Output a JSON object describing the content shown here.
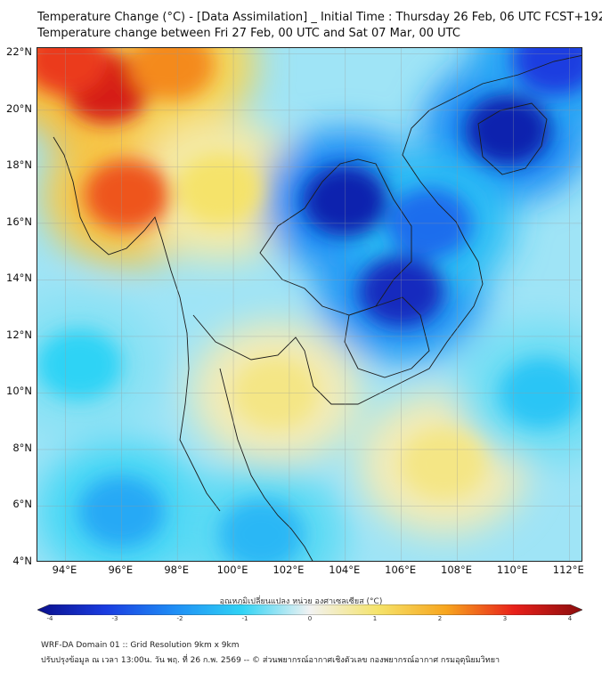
{
  "title_line1": "Temperature Change (°C) - [Data Assimilation] _ Initial Time : Thursday 26 Feb, 06 UTC FCST+192",
  "title_line2": "Temperature change between Fri 27 Feb, 00 UTC and Sat 07 Mar, 00 UTC",
  "map": {
    "lon_range": [
      93,
      112.5
    ],
    "lat_range": [
      4,
      22.2
    ],
    "lat_ticks": [
      "22°N",
      "20°N",
      "18°N",
      "16°N",
      "14°N",
      "12°N",
      "10°N",
      "8°N",
      "6°N",
      "4°N"
    ],
    "lon_ticks": [
      "94°E",
      "96°E",
      "98°E",
      "100°E",
      "102°E",
      "104°E",
      "106°E",
      "108°E",
      "110°E",
      "112°E"
    ],
    "gridlines": true
  },
  "colorbar": {
    "label": "อุณหภูมิเปลี่ยนแปลง หน่วย องศาเซลเซียส (°C)",
    "min": -4,
    "max": 4,
    "tick_labels": [
      "-4",
      "-3",
      "-2",
      "-1",
      "0",
      "1",
      "2",
      "3",
      "4"
    ],
    "colors": [
      "#0a0f8c",
      "#1a3ce0",
      "#1f8df5",
      "#2fd3f5",
      "#f2f2f2",
      "#f5e36a",
      "#f7a51e",
      "#e8201a",
      "#8a0d0d"
    ]
  },
  "chart_data": {
    "type": "heatmap",
    "variable": "Temperature change (°C)",
    "x": "longitude (°E)",
    "y": "latitude (°N)",
    "value_range": [
      -4,
      4
    ],
    "features": [
      {
        "name": "warm core Myanmar west",
        "lon": 95.5,
        "lat": 20.8,
        "value": 3.2
      },
      {
        "name": "warm NW corner",
        "lon": 94.0,
        "lat": 21.8,
        "value": 2.8
      },
      {
        "name": "warm band north",
        "lon": 97.8,
        "lat": 21.6,
        "value": 2.2
      },
      {
        "name": "warm lobe south",
        "lon": 96.2,
        "lat": 17.0,
        "value": 2.6
      },
      {
        "name": "warm band central",
        "lon": 99.5,
        "lat": 17.2,
        "value": 1.0
      },
      {
        "name": "warm Gulf of Thailand",
        "lon": 101.5,
        "lat": 10.0,
        "value": 0.8
      },
      {
        "name": "warm South China Sea",
        "lon": 107.5,
        "lat": 7.5,
        "value": 0.8
      },
      {
        "name": "cold core NE Thailand / Laos",
        "lon": 104.0,
        "lat": 16.8,
        "value": -3.6
      },
      {
        "name": "cold Cambodia",
        "lon": 106.0,
        "lat": 13.6,
        "value": -3.4
      },
      {
        "name": "cold Hainan",
        "lon": 109.8,
        "lat": 19.3,
        "value": -3.6
      },
      {
        "name": "cold north Vietnam coast",
        "lon": 111.5,
        "lat": 21.8,
        "value": -3.0
      },
      {
        "name": "cold Vietnam central",
        "lon": 107.0,
        "lat": 16.0,
        "value": -2.4
      },
      {
        "name": "cool Malay peninsula west",
        "lon": 96.0,
        "lat": 5.8,
        "value": -1.6
      },
      {
        "name": "cool Malay peninsula south",
        "lon": 101.0,
        "lat": 5.0,
        "value": -1.4
      },
      {
        "name": "cool Andaman Sea",
        "lon": 94.5,
        "lat": 11.0,
        "value": -1.0
      },
      {
        "name": "cool east sea",
        "lon": 111.0,
        "lat": 10.0,
        "value": -1.2
      }
    ]
  },
  "footer_line1": "WRF-DA Domain 01 :: Grid Resolution 9km x 9km",
  "footer_line2": "ปรับปรุงข้อมูล ณ เวลา 13:00น. วัน พฤ. ที่ 26 ก.พ. 2569 -- © ส่วนพยากรณ์อากาศเชิงตัวเลข กองพยากรณ์อากาศ กรมอุตุนิยมวิทยา"
}
